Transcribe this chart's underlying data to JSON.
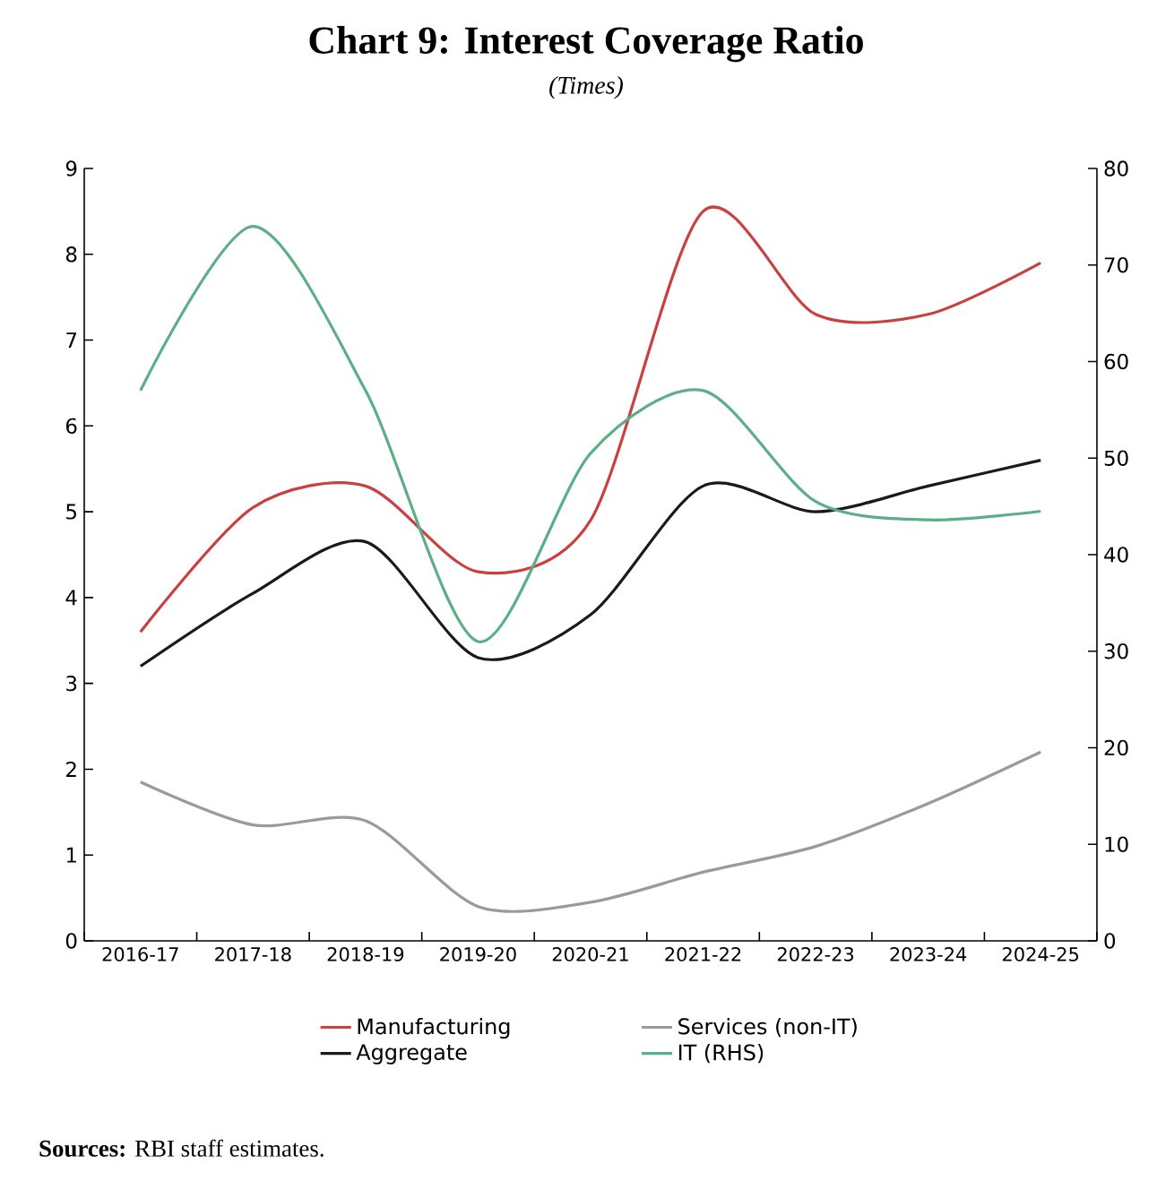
{
  "chart_data": {
    "type": "line",
    "title": "Chart 9: Interest Coverage Ratio",
    "subtitle": "(Times)",
    "categories": [
      "2016-17",
      "2017-18",
      "2018-19",
      "2019-20",
      "2020-21",
      "2021-22",
      "2022-23",
      "2023-24",
      "2024-25"
    ],
    "series": [
      {
        "name": "Manufacturing",
        "color": "#c94040",
        "values": [
          3.6,
          5.05,
          5.3,
          4.3,
          4.9,
          8.5,
          7.3,
          7.3,
          7.9
        ]
      },
      {
        "name": "Services (non-IT)",
        "color": "#9a9a9a",
        "values": [
          1.85,
          1.35,
          1.4,
          0.4,
          0.45,
          0.8,
          1.1,
          1.6,
          2.2
        ]
      },
      {
        "name": "Aggregate",
        "color": "#1a1a1a",
        "values": [
          3.2,
          4.05,
          4.65,
          3.3,
          3.8,
          5.3,
          5.0,
          5.3,
          5.6
        ]
      },
      {
        "name": "IT (RHS)",
        "color": "#5aaf86",
        "axis": "y2",
        "values": [
          57,
          74,
          57,
          31,
          50.5,
          57,
          45.5,
          43.6,
          44.5
        ]
      }
    ],
    "ylim": [
      0,
      9
    ],
    "yticks": [
      0,
      1,
      2,
      3,
      4,
      5,
      6,
      7,
      8,
      9
    ],
    "y2lim": [
      0,
      80
    ],
    "y2ticks": [
      0,
      10,
      20,
      30,
      40,
      50,
      60,
      70,
      80
    ],
    "grid": false,
    "legend": "bottom",
    "marker": "none",
    "line_style": "solid",
    "annotations": [
      "**Sources:** RBI staff estimates."
    ]
  }
}
